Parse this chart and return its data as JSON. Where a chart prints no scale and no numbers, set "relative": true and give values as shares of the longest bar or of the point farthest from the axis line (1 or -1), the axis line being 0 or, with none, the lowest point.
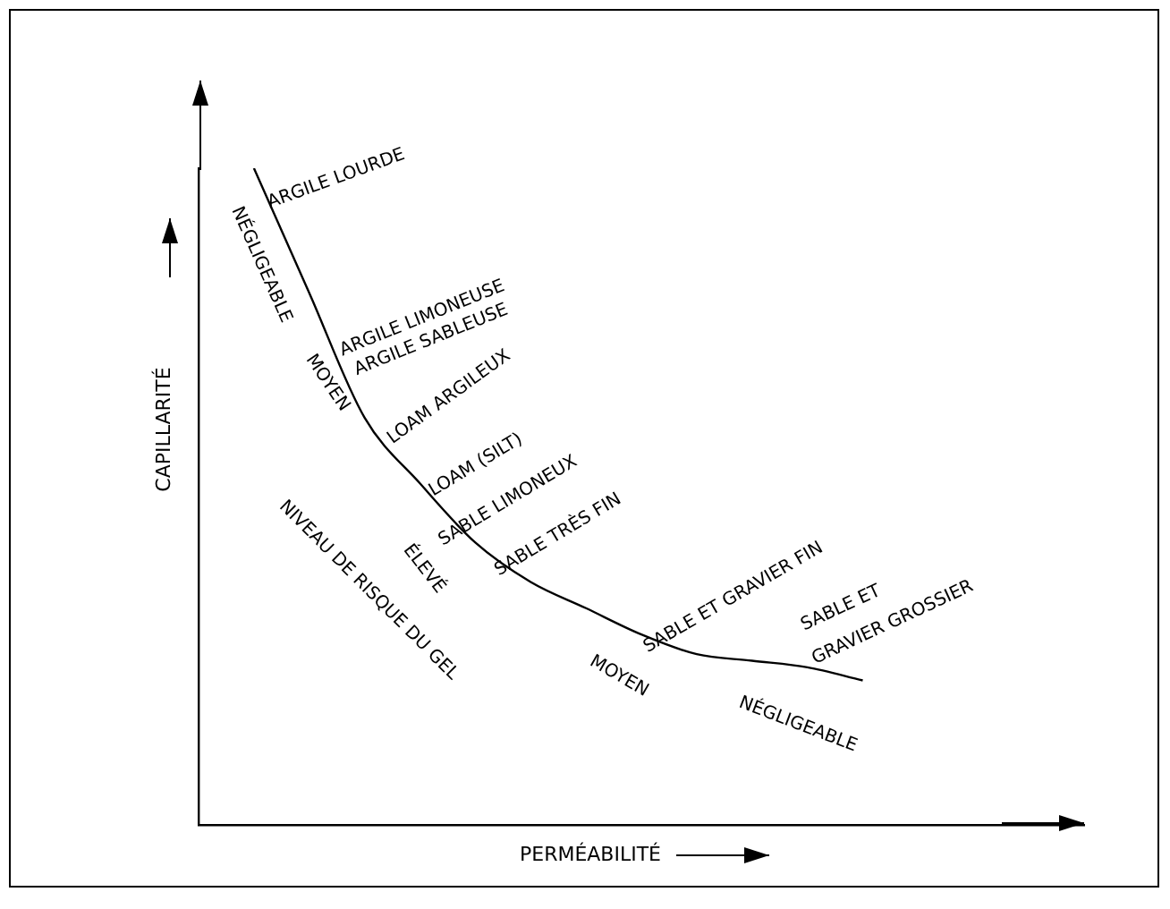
{
  "chart_data": {
    "type": "line",
    "relative": true,
    "xlabel": "PERMÉABILITÉ",
    "ylabel": "CAPILLARITÉ",
    "color": "#000000",
    "marker": "none",
    "grid": false,
    "legend": false,
    "tick_labels": false,
    "categories": [
      null,
      null,
      null,
      null,
      null,
      null,
      null,
      null,
      null,
      null,
      null,
      null,
      null,
      null,
      null,
      null,
      null
    ],
    "values": [
      null,
      1,
      0.81,
      0.62,
      0.52,
      0.43,
      0.37,
      0.33,
      0.29,
      0.26,
      0.25,
      0.24,
      0.22,
      null,
      null,
      null,
      null
    ],
    "annotations": [
      "ARGILE LOURDE",
      "NÉGLIGEABLE",
      "ARGILE LIMONEUSE",
      "ARGILE SABLEUSE",
      "MOYEN",
      "LOAM ARGILEUX",
      "LOAM (SILT)",
      "SABLE LIMONEUX",
      "SABLE TRÈS FIN",
      "ÉLEVÉ",
      "NIVEAU DE RISQUE DU GEL",
      "SABLE ET GRAVIER FIN",
      "MOYEN",
      "SABLE ET",
      "GRAVIER GROSSIER",
      "NÉGLIGEABLE"
    ]
  }
}
